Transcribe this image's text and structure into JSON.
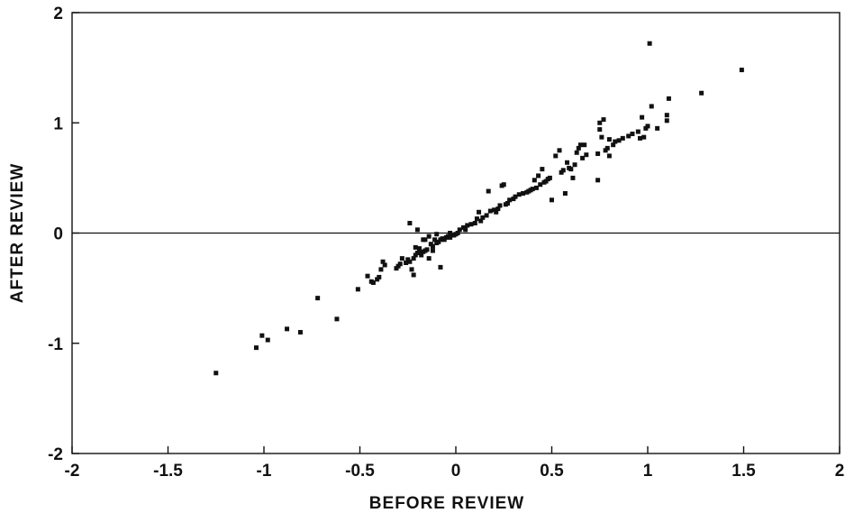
{
  "chart_data": {
    "type": "scatter",
    "xlabel": "BEFORE REVIEW",
    "ylabel": "AFTER REVIEW",
    "xlim": [
      -2,
      2
    ],
    "ylim": [
      -2,
      2
    ],
    "x_ticks": [
      "-2",
      "-1.5",
      "-1",
      "-0.5",
      "0",
      "0.5",
      "1",
      "1.5",
      "2"
    ],
    "y_ticks": [
      "-2",
      "-1",
      "0",
      "1",
      "2"
    ],
    "x_tick_values": [
      -2,
      -1.5,
      -1,
      -0.5,
      0,
      0.5,
      1,
      1.5,
      2
    ],
    "y_tick_values": [
      -2,
      -1,
      0,
      1,
      2
    ],
    "reference_line_y": 0,
    "grid": false,
    "marker_color": "#111111",
    "points": [
      [
        -1.25,
        -1.27
      ],
      [
        -1.04,
        -1.04
      ],
      [
        -1.01,
        -0.93
      ],
      [
        -0.98,
        -0.97
      ],
      [
        -0.88,
        -0.87
      ],
      [
        -0.81,
        -0.9
      ],
      [
        -0.72,
        -0.59
      ],
      [
        -0.62,
        -0.78
      ],
      [
        -0.51,
        -0.51
      ],
      [
        -0.46,
        -0.39
      ],
      [
        -0.44,
        -0.44
      ],
      [
        -0.43,
        -0.45
      ],
      [
        -0.41,
        -0.42
      ],
      [
        -0.4,
        -0.4
      ],
      [
        -0.39,
        -0.33
      ],
      [
        -0.38,
        -0.26
      ],
      [
        -0.37,
        -0.29
      ],
      [
        -0.31,
        -0.32
      ],
      [
        -0.3,
        -0.3
      ],
      [
        -0.29,
        -0.28
      ],
      [
        -0.28,
        -0.23
      ],
      [
        -0.26,
        -0.27
      ],
      [
        -0.25,
        -0.24
      ],
      [
        -0.24,
        -0.26
      ],
      [
        -0.24,
        0.09
      ],
      [
        -0.23,
        -0.33
      ],
      [
        -0.22,
        -0.23
      ],
      [
        -0.22,
        -0.38
      ],
      [
        -0.21,
        -0.2
      ],
      [
        -0.21,
        -0.13
      ],
      [
        -0.2,
        0.03
      ],
      [
        -0.2,
        -0.18
      ],
      [
        -0.19,
        -0.14
      ],
      [
        -0.19,
        -0.16
      ],
      [
        -0.18,
        -0.2
      ],
      [
        -0.17,
        -0.06
      ],
      [
        -0.17,
        -0.17
      ],
      [
        -0.16,
        -0.16
      ],
      [
        -0.16,
        -0.06
      ],
      [
        -0.15,
        -0.15
      ],
      [
        -0.14,
        -0.23
      ],
      [
        -0.14,
        -0.03
      ],
      [
        -0.13,
        -0.1
      ],
      [
        -0.12,
        -0.12
      ],
      [
        -0.12,
        -0.16
      ],
      [
        -0.11,
        -0.06
      ],
      [
        -0.1,
        -0.01
      ],
      [
        -0.1,
        -0.09
      ],
      [
        -0.09,
        -0.08
      ],
      [
        -0.08,
        -0.31
      ],
      [
        -0.08,
        -0.06
      ],
      [
        -0.07,
        -0.05
      ],
      [
        -0.06,
        -0.06
      ],
      [
        -0.05,
        -0.04
      ],
      [
        -0.04,
        -0.03
      ],
      [
        -0.03,
        0.0
      ],
      [
        -0.03,
        -0.04
      ],
      [
        -0.02,
        -0.02
      ],
      [
        -0.01,
        -0.02
      ],
      [
        0.0,
        -0.01
      ],
      [
        0.01,
        0.0
      ],
      [
        0.02,
        0.03
      ],
      [
        0.04,
        0.05
      ],
      [
        0.05,
        0.03
      ],
      [
        0.06,
        0.07
      ],
      [
        0.08,
        0.08
      ],
      [
        0.1,
        0.09
      ],
      [
        0.11,
        0.13
      ],
      [
        0.12,
        0.19
      ],
      [
        0.13,
        0.11
      ],
      [
        0.14,
        0.14
      ],
      [
        0.16,
        0.16
      ],
      [
        0.17,
        0.38
      ],
      [
        0.18,
        0.2
      ],
      [
        0.2,
        0.21
      ],
      [
        0.21,
        0.19
      ],
      [
        0.22,
        0.22
      ],
      [
        0.23,
        0.25
      ],
      [
        0.24,
        0.43
      ],
      [
        0.25,
        0.44
      ],
      [
        0.26,
        0.26
      ],
      [
        0.27,
        0.27
      ],
      [
        0.28,
        0.3
      ],
      [
        0.3,
        0.31
      ],
      [
        0.31,
        0.33
      ],
      [
        0.33,
        0.35
      ],
      [
        0.35,
        0.36
      ],
      [
        0.37,
        0.37
      ],
      [
        0.38,
        0.38
      ],
      [
        0.39,
        0.39
      ],
      [
        0.4,
        0.4
      ],
      [
        0.41,
        0.48
      ],
      [
        0.42,
        0.41
      ],
      [
        0.43,
        0.52
      ],
      [
        0.44,
        0.44
      ],
      [
        0.45,
        0.58
      ],
      [
        0.46,
        0.46
      ],
      [
        0.47,
        0.47
      ],
      [
        0.48,
        0.49
      ],
      [
        0.49,
        0.5
      ],
      [
        0.5,
        0.3
      ],
      [
        0.52,
        0.7
      ],
      [
        0.54,
        0.75
      ],
      [
        0.55,
        0.55
      ],
      [
        0.56,
        0.57
      ],
      [
        0.57,
        0.36
      ],
      [
        0.58,
        0.64
      ],
      [
        0.59,
        0.59
      ],
      [
        0.6,
        0.58
      ],
      [
        0.61,
        0.5
      ],
      [
        0.62,
        0.62
      ],
      [
        0.63,
        0.73
      ],
      [
        0.64,
        0.77
      ],
      [
        0.65,
        0.8
      ],
      [
        0.66,
        0.68
      ],
      [
        0.67,
        0.8
      ],
      [
        0.68,
        0.71
      ],
      [
        0.74,
        0.48
      ],
      [
        0.74,
        0.72
      ],
      [
        0.75,
        0.94
      ],
      [
        0.75,
        1.0
      ],
      [
        0.76,
        0.87
      ],
      [
        0.77,
        1.03
      ],
      [
        0.78,
        0.75
      ],
      [
        0.79,
        0.77
      ],
      [
        0.8,
        0.7
      ],
      [
        0.8,
        0.85
      ],
      [
        0.82,
        0.8
      ],
      [
        0.83,
        0.83
      ],
      [
        0.85,
        0.84
      ],
      [
        0.87,
        0.86
      ],
      [
        0.9,
        0.88
      ],
      [
        0.92,
        0.9
      ],
      [
        0.95,
        0.92
      ],
      [
        0.96,
        0.86
      ],
      [
        0.97,
        1.05
      ],
      [
        0.98,
        0.87
      ],
      [
        0.99,
        0.95
      ],
      [
        1.0,
        0.97
      ],
      [
        1.01,
        1.72
      ],
      [
        1.02,
        1.15
      ],
      [
        1.05,
        0.95
      ],
      [
        1.1,
        1.02
      ],
      [
        1.1,
        1.07
      ],
      [
        1.11,
        1.22
      ],
      [
        1.28,
        1.27
      ],
      [
        1.49,
        1.48
      ]
    ]
  }
}
